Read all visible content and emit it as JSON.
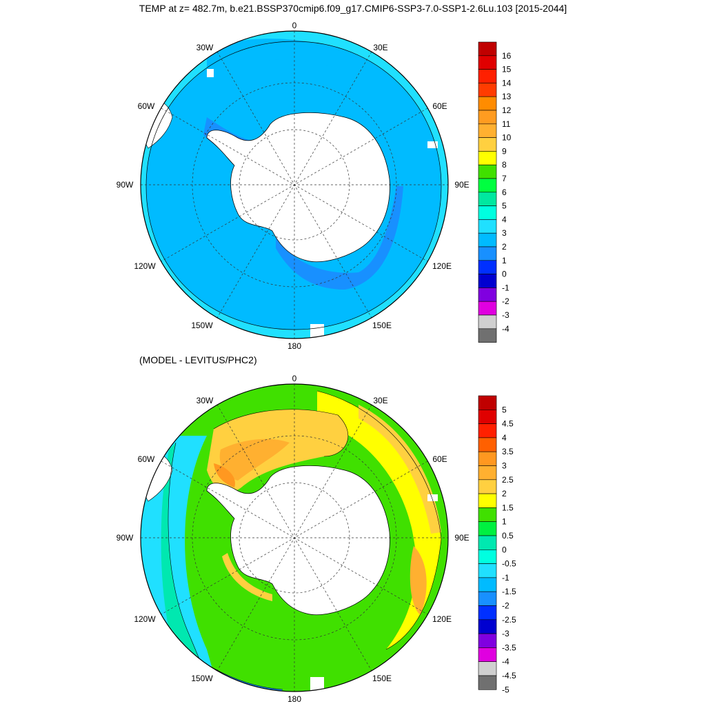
{
  "title": "TEMP at z= 482.7m, b.e21.BSSP370cmip6.f09_g17.CMIP6-SSP3-7.0-SSP1-2.6Lu.103 [2015-2044]",
  "subtitle": "(MODEL - LEVITUS/PHC2)",
  "lon_labels": {
    "n": "0",
    "ne30": "30E",
    "ne60": "60E",
    "e90": "90E",
    "e120": "120E",
    "e150": "150E",
    "s": "180",
    "w150": "150W",
    "w120": "120W",
    "w90": "90W",
    "w60": "60W",
    "w30": "30W"
  },
  "colorbar1": {
    "labels": [
      "16",
      "15",
      "14",
      "13",
      "12",
      "11",
      "10",
      "9",
      "8",
      "7",
      "6",
      "5",
      "4",
      "3",
      "2",
      "1",
      "0",
      "-1",
      "-2",
      "-3",
      "-4"
    ],
    "colors": [
      "#c00000",
      "#e00000",
      "#ff2000",
      "#ff3c00",
      "#ff8c00",
      "#ff9c20",
      "#ffb030",
      "#ffd040",
      "#ffff00",
      "#40e000",
      "#00ff40",
      "#00e8a0",
      "#00ffe0",
      "#20e0ff",
      "#00bbff",
      "#1890ff",
      "#0030ff",
      "#0000d0",
      "#8000e0",
      "#e000e0",
      "#d0d0d0",
      "#707070"
    ]
  },
  "colorbar2": {
    "labels": [
      "5",
      "4.5",
      "4",
      "3.5",
      "3",
      "2.5",
      "2",
      "1.5",
      "1",
      "0.5",
      "0",
      "-0.5",
      "-1",
      "-1.5",
      "-2",
      "-2.5",
      "-3",
      "-3.5",
      "-4",
      "-4.5",
      "-5"
    ],
    "colors": [
      "#c00000",
      "#e00000",
      "#ff2000",
      "#ff6000",
      "#ff9820",
      "#ffb030",
      "#ffd040",
      "#ffff00",
      "#40e000",
      "#00f040",
      "#00e8b0",
      "#00ffe0",
      "#20e0ff",
      "#00bbff",
      "#1890ff",
      "#0030ff",
      "#0000d0",
      "#8000e0",
      "#e000e0",
      "#d0d0d0",
      "#707070"
    ]
  }
}
